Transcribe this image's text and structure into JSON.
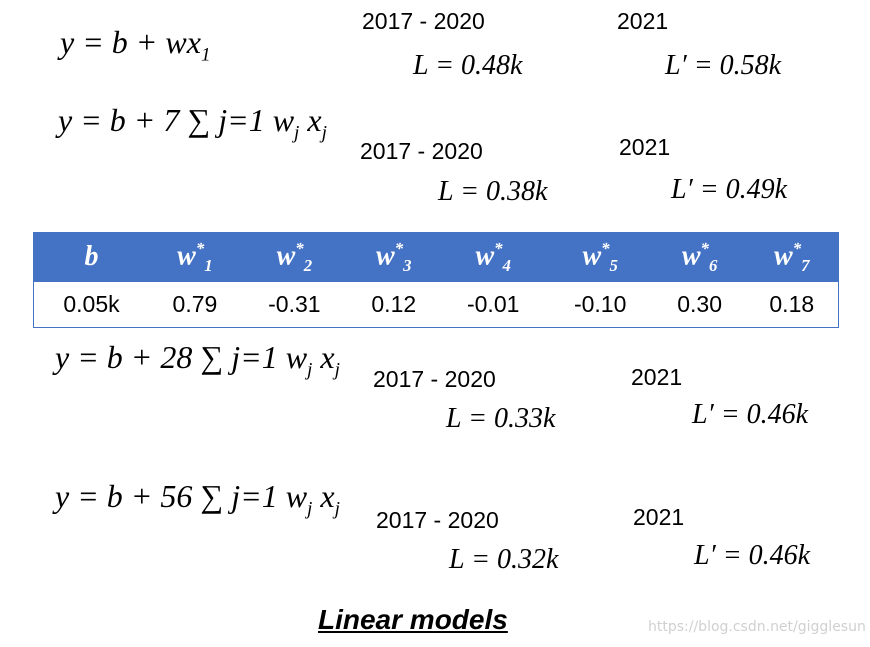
{
  "models": [
    {
      "formula": {
        "text": "y = b + wx",
        "sub": "1"
      },
      "period": "2017 - 2020",
      "loss": "L = 0.48k",
      "test_year": "2021",
      "test_loss": "L′ = 0.58k"
    },
    {
      "formula": {
        "lhs": "y = b +",
        "upper": "7",
        "sigma": "∑",
        "lower": "j=1",
        "w": "w",
        "w_sub": "j",
        "x": "x",
        "x_sub": "j"
      },
      "period": "2017 - 2020",
      "loss": "L = 0.38k",
      "test_year": "2021",
      "test_loss": "L′ = 0.49k"
    },
    {
      "formula": {
        "lhs": "y = b +",
        "upper": "28",
        "sigma": "∑",
        "lower": "j=1",
        "w": "w",
        "w_sub": "j",
        "x": "x",
        "x_sub": "j"
      },
      "period": "2017 - 2020",
      "loss": "L = 0.33k",
      "test_year": "2021",
      "test_loss": "L′ = 0.46k"
    },
    {
      "formula": {
        "lhs": "y = b +",
        "upper": "56",
        "sigma": "∑",
        "lower": "j=1",
        "w": "w",
        "w_sub": "j",
        "x": "x",
        "x_sub": "j"
      },
      "period": "2017 - 2020",
      "loss": "L = 0.32k",
      "test_year": "2021",
      "test_loss": "L′ = 0.46k"
    }
  ],
  "table": {
    "header": [
      {
        "base": "b"
      },
      {
        "base": "w",
        "sup": "*",
        "sub": "1"
      },
      {
        "base": "w",
        "sup": "*",
        "sub": "2"
      },
      {
        "base": "w",
        "sup": "*",
        "sub": "3"
      },
      {
        "base": "w",
        "sup": "*",
        "sub": "4"
      },
      {
        "base": "w",
        "sup": "*",
        "sub": "5"
      },
      {
        "base": "w",
        "sup": "*",
        "sub": "6"
      },
      {
        "base": "w",
        "sup": "*",
        "sub": "7"
      }
    ],
    "row": [
      "0.05k",
      "0.79",
      "-0.31",
      "0.12",
      "-0.01",
      "-0.10",
      "0.30",
      "0.18"
    ]
  },
  "caption": "Linear models",
  "watermark": "https://blog.csdn.net/gigglesun"
}
